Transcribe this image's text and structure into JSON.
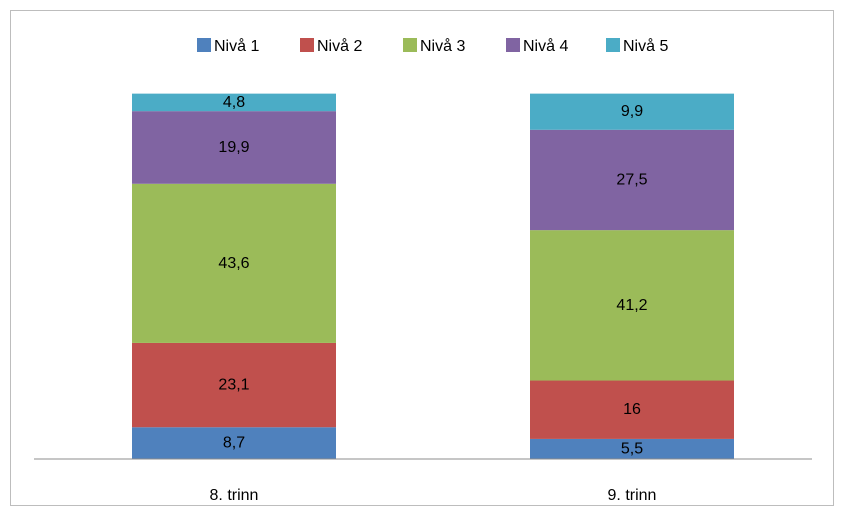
{
  "chart_data": {
    "type": "bar",
    "stacked": true,
    "categories": [
      "8. trinn",
      "9. trinn"
    ],
    "series": [
      {
        "name": "Nivå 1",
        "color": "#4f81bd",
        "values": [
          8.7,
          5.5
        ],
        "labels": [
          "8,7",
          "5,5"
        ]
      },
      {
        "name": "Nivå 2",
        "color": "#c0504d",
        "values": [
          23.1,
          16
        ],
        "labels": [
          "23,1",
          "16"
        ]
      },
      {
        "name": "Nivå 3",
        "color": "#9bbb59",
        "values": [
          43.6,
          41.2
        ],
        "labels": [
          "43,6",
          "41,2"
        ]
      },
      {
        "name": "Nivå 4",
        "color": "#8064a2",
        "values": [
          19.9,
          27.5
        ],
        "labels": [
          "19,9",
          "27,5"
        ]
      },
      {
        "name": "Nivå 5",
        "color": "#4bacc6",
        "values": [
          4.8,
          9.9
        ],
        "labels": [
          "4,8",
          "9,9"
        ]
      }
    ],
    "ylim": [
      0,
      100
    ],
    "legend_position": "top",
    "grid": false,
    "title": "",
    "xlabel": "",
    "ylabel": ""
  }
}
